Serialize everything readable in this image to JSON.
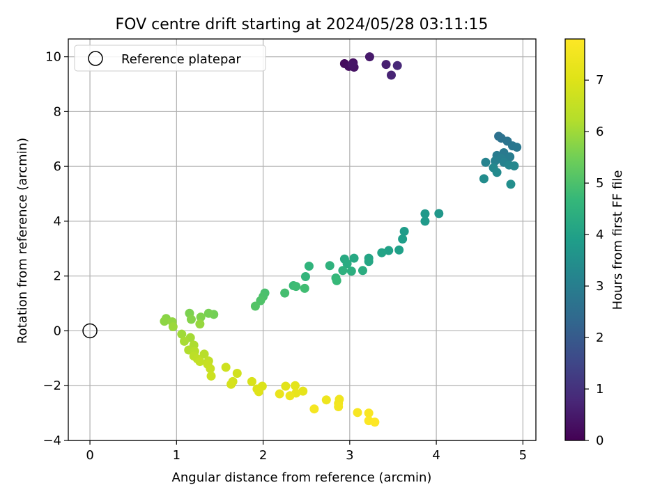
{
  "chart_data": {
    "type": "scatter",
    "title": "FOV centre drift starting at 2024/05/28 03:11:15",
    "xlabel": "Angular distance from reference (arcmin)",
    "ylabel": "Rotation from reference (arcmin)",
    "xlim": [
      -0.25,
      5.15
    ],
    "ylim": [
      -4.0,
      10.65
    ],
    "x_ticks": [
      0,
      1,
      2,
      3,
      4,
      5
    ],
    "y_ticks": [
      -4,
      -2,
      0,
      2,
      4,
      6,
      8,
      10
    ],
    "x_tick_labels": [
      "0",
      "1",
      "2",
      "3",
      "4",
      "5"
    ],
    "y_tick_labels": [
      "−4",
      "−2",
      "0",
      "2",
      "4",
      "6",
      "8",
      "10"
    ],
    "grid": true,
    "legend": {
      "placement": "upper-left",
      "entries": [
        "Reference platepar"
      ]
    },
    "reference_point": {
      "label": "Reference platepar",
      "x": 0,
      "y": 0,
      "marker": "open-circle"
    },
    "colorbar": {
      "label": "Hours from first FF file",
      "colormap": "viridis",
      "min": 0,
      "max": 7.8,
      "ticks": [
        0,
        1,
        2,
        3,
        4,
        5,
        6,
        7
      ],
      "tick_labels": [
        "0",
        "1",
        "2",
        "3",
        "4",
        "5",
        "6",
        "7"
      ]
    },
    "series": [
      {
        "points": [
          {
            "x": 2.94,
            "y": 9.75,
            "h": 0.2
          },
          {
            "x": 2.99,
            "y": 9.65,
            "h": 0.25
          },
          {
            "x": 3.04,
            "y": 9.78,
            "h": 0.3
          },
          {
            "x": 3.05,
            "y": 9.62,
            "h": 0.35
          },
          {
            "x": 3.03,
            "y": 9.72,
            "h": 0.4
          },
          {
            "x": 3.23,
            "y": 10.0,
            "h": 0.5
          },
          {
            "x": 3.42,
            "y": 9.72,
            "h": 0.6
          },
          {
            "x": 3.48,
            "y": 9.33,
            "h": 0.7
          },
          {
            "x": 3.55,
            "y": 9.68,
            "h": 0.8
          },
          {
            "x": 4.72,
            "y": 7.1,
            "h": 2.6
          },
          {
            "x": 4.75,
            "y": 7.03,
            "h": 2.65
          },
          {
            "x": 4.82,
            "y": 6.92,
            "h": 2.7
          },
          {
            "x": 4.88,
            "y": 6.75,
            "h": 2.75
          },
          {
            "x": 4.93,
            "y": 6.7,
            "h": 2.8
          },
          {
            "x": 4.78,
            "y": 6.5,
            "h": 2.85
          },
          {
            "x": 4.7,
            "y": 6.4,
            "h": 2.9
          },
          {
            "x": 4.85,
            "y": 6.35,
            "h": 2.95
          },
          {
            "x": 4.75,
            "y": 6.3,
            "h": 3.0
          },
          {
            "x": 4.68,
            "y": 6.2,
            "h": 3.05
          },
          {
            "x": 4.78,
            "y": 6.15,
            "h": 3.1
          },
          {
            "x": 4.57,
            "y": 6.15,
            "h": 3.15
          },
          {
            "x": 4.84,
            "y": 6.05,
            "h": 3.2
          },
          {
            "x": 4.9,
            "y": 6.02,
            "h": 3.25
          },
          {
            "x": 4.66,
            "y": 5.95,
            "h": 3.3
          },
          {
            "x": 4.7,
            "y": 5.78,
            "h": 3.35
          },
          {
            "x": 4.55,
            "y": 5.55,
            "h": 3.4
          },
          {
            "x": 4.86,
            "y": 5.35,
            "h": 3.45
          },
          {
            "x": 4.03,
            "y": 4.28,
            "h": 3.7
          },
          {
            "x": 3.87,
            "y": 4.27,
            "h": 3.75
          },
          {
            "x": 3.87,
            "y": 4.0,
            "h": 3.8
          },
          {
            "x": 3.63,
            "y": 3.63,
            "h": 3.85
          },
          {
            "x": 3.61,
            "y": 3.35,
            "h": 3.9
          },
          {
            "x": 3.57,
            "y": 2.95,
            "h": 3.95
          },
          {
            "x": 3.45,
            "y": 2.93,
            "h": 4.0
          },
          {
            "x": 3.37,
            "y": 2.85,
            "h": 4.05
          },
          {
            "x": 3.22,
            "y": 2.65,
            "h": 4.1
          },
          {
            "x": 3.22,
            "y": 2.53,
            "h": 4.15
          },
          {
            "x": 3.05,
            "y": 2.65,
            "h": 4.2
          },
          {
            "x": 2.94,
            "y": 2.62,
            "h": 4.25
          },
          {
            "x": 2.97,
            "y": 2.45,
            "h": 4.3
          },
          {
            "x": 3.15,
            "y": 2.2,
            "h": 4.35
          },
          {
            "x": 3.02,
            "y": 2.18,
            "h": 4.4
          },
          {
            "x": 2.92,
            "y": 2.2,
            "h": 4.45
          },
          {
            "x": 2.77,
            "y": 2.38,
            "h": 4.5
          },
          {
            "x": 2.53,
            "y": 2.36,
            "h": 4.55
          },
          {
            "x": 2.49,
            "y": 1.98,
            "h": 4.6
          },
          {
            "x": 2.84,
            "y": 1.93,
            "h": 4.65
          },
          {
            "x": 2.85,
            "y": 1.83,
            "h": 4.7
          },
          {
            "x": 2.35,
            "y": 1.65,
            "h": 4.75
          },
          {
            "x": 2.38,
            "y": 1.62,
            "h": 4.8
          },
          {
            "x": 2.48,
            "y": 1.55,
            "h": 4.85
          },
          {
            "x": 2.25,
            "y": 1.38,
            "h": 4.9
          },
          {
            "x": 2.02,
            "y": 1.38,
            "h": 4.95
          },
          {
            "x": 2.0,
            "y": 1.25,
            "h": 5.0
          },
          {
            "x": 1.97,
            "y": 1.1,
            "h": 5.05
          },
          {
            "x": 1.91,
            "y": 0.9,
            "h": 5.1
          },
          {
            "x": 1.43,
            "y": 0.6,
            "h": 5.5
          },
          {
            "x": 1.37,
            "y": 0.64,
            "h": 5.55
          },
          {
            "x": 1.15,
            "y": 0.64,
            "h": 5.6
          },
          {
            "x": 1.28,
            "y": 0.5,
            "h": 5.65
          },
          {
            "x": 1.17,
            "y": 0.42,
            "h": 5.7
          },
          {
            "x": 0.88,
            "y": 0.45,
            "h": 5.75
          },
          {
            "x": 0.86,
            "y": 0.35,
            "h": 5.8
          },
          {
            "x": 0.95,
            "y": 0.33,
            "h": 5.85
          },
          {
            "x": 1.27,
            "y": 0.25,
            "h": 5.9
          },
          {
            "x": 0.96,
            "y": 0.15,
            "h": 5.95
          },
          {
            "x": 1.06,
            "y": -0.12,
            "h": 6.0
          },
          {
            "x": 1.16,
            "y": -0.25,
            "h": 6.05
          },
          {
            "x": 1.09,
            "y": -0.38,
            "h": 6.1
          },
          {
            "x": 1.2,
            "y": -0.52,
            "h": 6.15
          },
          {
            "x": 1.14,
            "y": -0.7,
            "h": 6.2
          },
          {
            "x": 1.21,
            "y": -0.75,
            "h": 6.25
          },
          {
            "x": 1.32,
            "y": -0.85,
            "h": 6.3
          },
          {
            "x": 1.2,
            "y": -0.92,
            "h": 6.35
          },
          {
            "x": 1.24,
            "y": -1.02,
            "h": 6.4
          },
          {
            "x": 1.37,
            "y": -1.1,
            "h": 6.45
          },
          {
            "x": 1.27,
            "y": -1.12,
            "h": 6.5
          },
          {
            "x": 1.36,
            "y": -1.22,
            "h": 6.55
          },
          {
            "x": 1.39,
            "y": -1.38,
            "h": 6.6
          },
          {
            "x": 1.4,
            "y": -1.65,
            "h": 6.65
          },
          {
            "x": 1.57,
            "y": -1.33,
            "h": 6.7
          },
          {
            "x": 1.7,
            "y": -1.55,
            "h": 6.75
          },
          {
            "x": 1.65,
            "y": -1.85,
            "h": 6.8
          },
          {
            "x": 1.63,
            "y": -1.95,
            "h": 6.85
          },
          {
            "x": 1.87,
            "y": -1.85,
            "h": 6.9
          },
          {
            "x": 1.99,
            "y": -2.02,
            "h": 6.95
          },
          {
            "x": 1.93,
            "y": -2.12,
            "h": 7.0
          },
          {
            "x": 1.95,
            "y": -2.22,
            "h": 7.05
          },
          {
            "x": 2.26,
            "y": -2.02,
            "h": 7.1
          },
          {
            "x": 2.37,
            "y": -2.0,
            "h": 7.15
          },
          {
            "x": 2.46,
            "y": -2.2,
            "h": 7.2
          },
          {
            "x": 2.38,
            "y": -2.27,
            "h": 7.25
          },
          {
            "x": 2.19,
            "y": -2.3,
            "h": 7.3
          },
          {
            "x": 2.31,
            "y": -2.37,
            "h": 7.35
          },
          {
            "x": 2.73,
            "y": -2.52,
            "h": 7.4
          },
          {
            "x": 2.88,
            "y": -2.5,
            "h": 7.45
          },
          {
            "x": 2.87,
            "y": -2.65,
            "h": 7.5
          },
          {
            "x": 2.87,
            "y": -2.77,
            "h": 7.55
          },
          {
            "x": 2.59,
            "y": -2.85,
            "h": 7.6
          },
          {
            "x": 3.09,
            "y": -2.98,
            "h": 7.65
          },
          {
            "x": 3.22,
            "y": -3.0,
            "h": 7.7
          },
          {
            "x": 3.22,
            "y": -3.28,
            "h": 7.75
          },
          {
            "x": 3.29,
            "y": -3.33,
            "h": 7.8
          }
        ]
      }
    ]
  }
}
